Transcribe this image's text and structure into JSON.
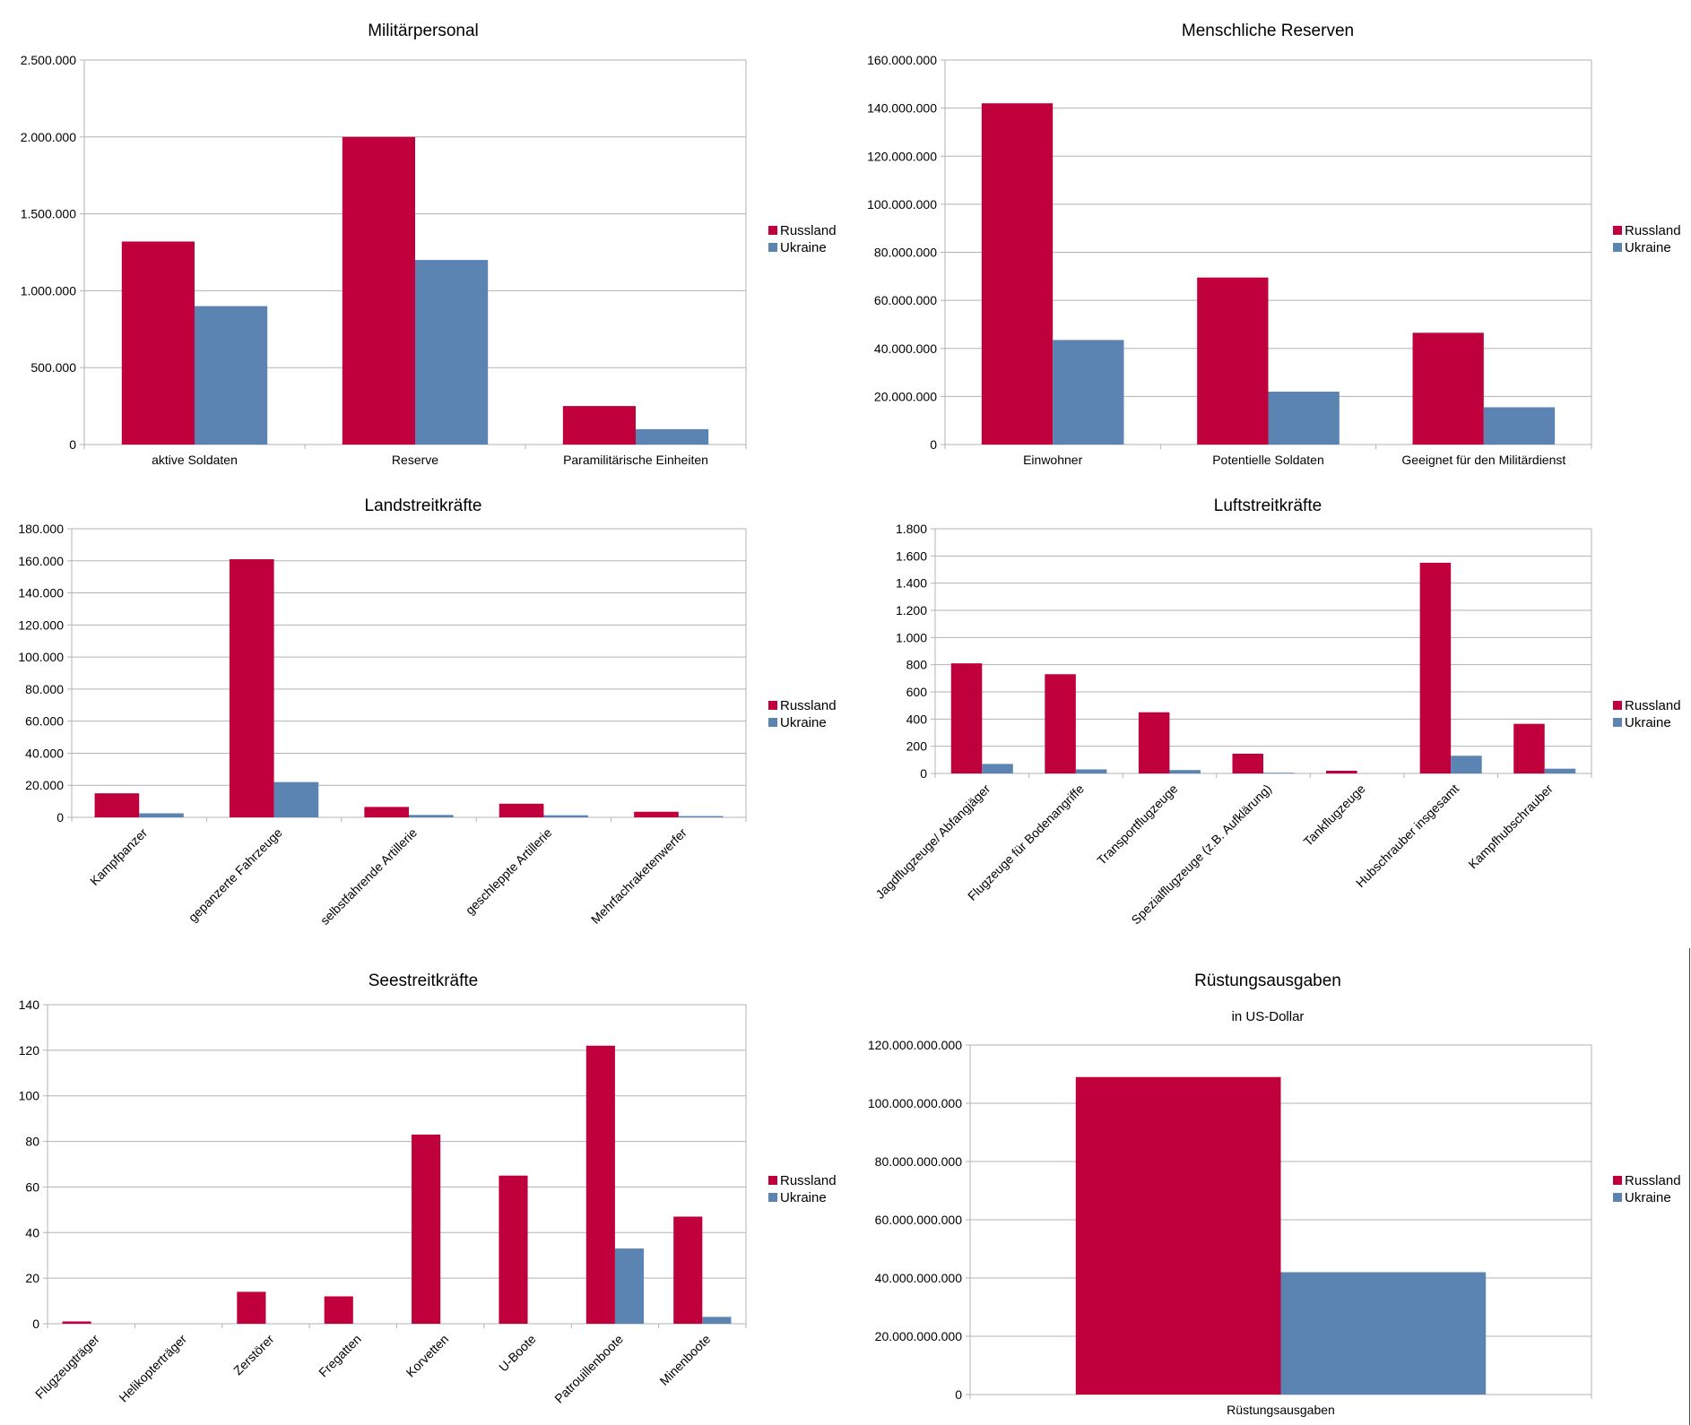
{
  "colors": {
    "russland": "#c0003c",
    "ukraine": "#5b84b3",
    "grid": "#b3b3b3"
  },
  "chart_data": [
    {
      "id": "militaerpersonal",
      "type": "bar",
      "title": "Militärpersonal",
      "subtitle": "",
      "categories": [
        "aktive Soldaten",
        "Reserve",
        "Paramilitärische Einheiten"
      ],
      "series": [
        {
          "name": "Russland",
          "values": [
            1320000,
            2000000,
            250000
          ]
        },
        {
          "name": "Ukraine",
          "values": [
            900000,
            1200000,
            100000
          ]
        }
      ],
      "ylim": [
        0,
        2500000
      ],
      "yticks": [
        0,
        500000,
        1000000,
        1500000,
        2000000,
        2500000
      ],
      "ytick_labels": [
        "0",
        "500.000",
        "1.000.000",
        "1.500.000",
        "2.000.000",
        "2.500.000"
      ],
      "label_rotation": "none",
      "grid": true,
      "legend": "right"
    },
    {
      "id": "menschliche-reserven",
      "type": "bar",
      "title": "Menschliche Reserven",
      "subtitle": "",
      "categories": [
        "Einwohner",
        "Potentielle Soldaten",
        "Geeignet für den Militärdienst"
      ],
      "series": [
        {
          "name": "Russland",
          "values": [
            142000000,
            69500000,
            46500000
          ]
        },
        {
          "name": "Ukraine",
          "values": [
            43500000,
            22000000,
            15500000
          ]
        }
      ],
      "ylim": [
        0,
        160000000
      ],
      "yticks": [
        0,
        20000000,
        40000000,
        60000000,
        80000000,
        100000000,
        120000000,
        140000000,
        160000000
      ],
      "ytick_labels": [
        "0",
        "20.000.000",
        "40.000.000",
        "60.000.000",
        "80.000.000",
        "100.000.000",
        "120.000.000",
        "140.000.000",
        "160.000.000"
      ],
      "label_rotation": "none",
      "grid": true,
      "legend": "right"
    },
    {
      "id": "landstreitkraefte",
      "type": "bar",
      "title": "Landstreitkräfte",
      "subtitle": "",
      "categories": [
        "Kampfpanzer",
        "gepanzerte Fahrzeuge",
        "selbstfahrende Artillerie",
        "geschleppte Artillerie",
        "Mehrfachraketenwerfer"
      ],
      "series": [
        {
          "name": "Russland",
          "values": [
            15000,
            161000,
            6500,
            8500,
            3500
          ]
        },
        {
          "name": "Ukraine",
          "values": [
            2500,
            22000,
            1500,
            1300,
            800
          ]
        }
      ],
      "ylim": [
        0,
        180000
      ],
      "yticks": [
        0,
        20000,
        40000,
        60000,
        80000,
        100000,
        120000,
        140000,
        160000,
        180000
      ],
      "ytick_labels": [
        "0",
        "20.000",
        "40.000",
        "60.000",
        "80.000",
        "100.000",
        "120.000",
        "140.000",
        "160.000",
        "180.000"
      ],
      "label_rotation": "diagonal",
      "grid": true,
      "legend": "right"
    },
    {
      "id": "luftstreitkraefte",
      "type": "bar",
      "title": "Luftstreitkräfte",
      "subtitle": "",
      "categories": [
        "Jagdflugzeuge/ Abfangjäger",
        "Flugzeuge für Bodenangriffe",
        "Transportflugzeuge",
        "Spezialflugzeuge (z.B. Aufklärung)",
        "Tankflugzeuge",
        "Hubschrauber insgesamt",
        "Kampfhubschrauber"
      ],
      "series": [
        {
          "name": "Russland",
          "values": [
            810,
            730,
            450,
            145,
            20,
            1550,
            365
          ]
        },
        {
          "name": "Ukraine",
          "values": [
            70,
            30,
            25,
            5,
            0,
            130,
            35
          ]
        }
      ],
      "ylim": [
        0,
        1800
      ],
      "yticks": [
        0,
        200,
        400,
        600,
        800,
        1000,
        1200,
        1400,
        1600,
        1800
      ],
      "ytick_labels": [
        "0",
        "200",
        "400",
        "600",
        "800",
        "1.000",
        "1.200",
        "1.400",
        "1.600",
        "1.800"
      ],
      "label_rotation": "diagonal",
      "grid": true,
      "legend": "right"
    },
    {
      "id": "seestreitkraefte",
      "type": "bar",
      "title": "Seestreitkräfte",
      "subtitle": "",
      "categories": [
        "Flugzeugträger",
        "Helikopterträger",
        "Zerstörer",
        "Fregatten",
        "Korvetten",
        "U-Boote",
        "Patrouillenboote",
        "Minenboote"
      ],
      "series": [
        {
          "name": "Russland",
          "values": [
            1,
            0,
            14,
            12,
            83,
            65,
            122,
            47
          ]
        },
        {
          "name": "Ukraine",
          "values": [
            0,
            0,
            0,
            0,
            0,
            0,
            33,
            3
          ]
        }
      ],
      "ylim": [
        0,
        140
      ],
      "yticks": [
        0,
        20,
        40,
        60,
        80,
        100,
        120,
        140
      ],
      "ytick_labels": [
        "0",
        "20",
        "40",
        "60",
        "80",
        "100",
        "120",
        "140"
      ],
      "label_rotation": "diagonal",
      "grid": true,
      "legend": "right"
    },
    {
      "id": "ruestungsausgaben",
      "type": "bar",
      "title": "Rüstungsausgaben",
      "subtitle": "in US-Dollar",
      "categories": [
        "Rüstungsausgaben"
      ],
      "series": [
        {
          "name": "Russland",
          "values": [
            109000000000
          ]
        },
        {
          "name": "Ukraine",
          "values": [
            42000000000
          ]
        }
      ],
      "ylim": [
        0,
        120000000000
      ],
      "yticks": [
        0,
        20000000000,
        40000000000,
        60000000000,
        80000000000,
        100000000000,
        120000000000
      ],
      "ytick_labels": [
        "0",
        "20.000.000.000",
        "40.000.000.000",
        "60.000.000.000",
        "80.000.000.000",
        "100.000.000.000",
        "120.000.000.000"
      ],
      "label_rotation": "none",
      "grid": true,
      "legend": "right"
    }
  ]
}
